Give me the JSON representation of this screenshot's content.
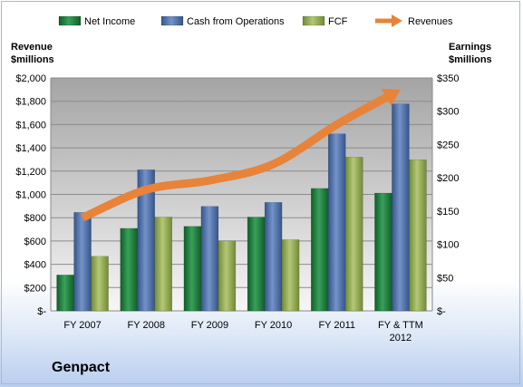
{
  "company_name": "Genpact",
  "chart_data": {
    "type": "bar",
    "categories": [
      "FY 2007",
      "FY 2008",
      "FY 2009",
      "FY 2010",
      "FY 2011",
      "FY & TTM 2012"
    ],
    "series": [
      {
        "name": "Net Income",
        "axis": "right",
        "color": "#1e7b3a",
        "values": [
          54,
          124,
          127,
          141,
          184,
          177
        ]
      },
      {
        "name": "Cash from Operations",
        "axis": "right",
        "color": "#4a6fa8",
        "values": [
          148,
          212,
          157,
          163,
          266,
          311
        ]
      },
      {
        "name": "FCF",
        "axis": "right",
        "color": "#93ad4f",
        "values": [
          82,
          141,
          105,
          107,
          231,
          227
        ]
      },
      {
        "name": "Revenues",
        "axis": "left",
        "type": "arrow-line",
        "color": "#e8833a",
        "values": [
          800,
          1040,
          1120,
          1260,
          1600,
          1900
        ]
      }
    ],
    "y_left": {
      "label": "Revenue\n$millions",
      "ylim": [
        0,
        2000
      ],
      "ticks": [
        "$-",
        "$200",
        "$400",
        "$600",
        "$800",
        "$1,000",
        "$1,200",
        "$1,400",
        "$1,600",
        "$1,800",
        "$2,000"
      ]
    },
    "y_right": {
      "label": "Earnings\n$millions",
      "ylim": [
        0,
        350
      ],
      "ticks": [
        "$-",
        "$50",
        "$100",
        "$150",
        "$200",
        "$250",
        "$300",
        "$350"
      ]
    },
    "legend_position": "top",
    "grid": true
  }
}
